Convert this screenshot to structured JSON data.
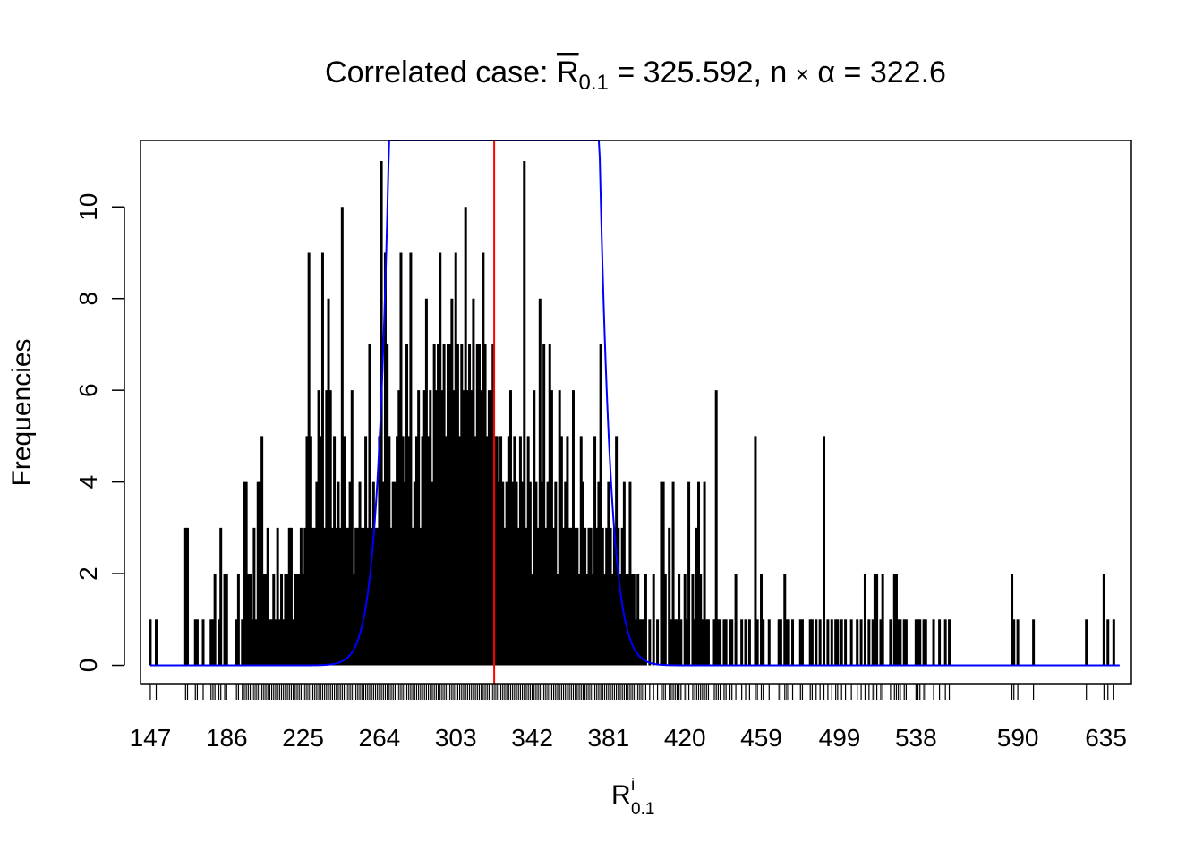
{
  "chart_data": {
    "type": "bar",
    "title": {
      "prefix": "Correlated case: ",
      "rbar": "R",
      "rbar_sub": "0.1",
      "rbar_eq": " = 325.592, n ",
      "times": "×",
      "alpha": " α",
      "alpha_eq": " = 322.6"
    },
    "xlabel": {
      "main": "R",
      "sub": "0.1",
      "sup": "i"
    },
    "ylabel": "Frequencies",
    "xlim": [
      142,
      648
    ],
    "ylim": [
      -0.4,
      11.45
    ],
    "x_ticks": [
      {
        "value": 147,
        "label": "147"
      },
      {
        "value": 186,
        "label": "186"
      },
      {
        "value": 225,
        "label": "225"
      },
      {
        "value": 264,
        "label": "264"
      },
      {
        "value": 303,
        "label": "303"
      },
      {
        "value": 342,
        "label": "342"
      },
      {
        "value": 381,
        "label": "381"
      },
      {
        "value": 420,
        "label": "420"
      },
      {
        "value": 459,
        "label": "459"
      },
      {
        "value": 499,
        "label": "499"
      },
      {
        "value": 538,
        "label": "538"
      },
      {
        "value": 590,
        "label": "590"
      },
      {
        "value": 635,
        "label": "635"
      }
    ],
    "y_ticks": [
      {
        "value": 0,
        "label": "0"
      },
      {
        "value": 2,
        "label": "2"
      },
      {
        "value": 4,
        "label": "4"
      },
      {
        "value": 6,
        "label": "6"
      },
      {
        "value": 8,
        "label": "8"
      },
      {
        "value": 10,
        "label": "10"
      }
    ],
    "mean_line": {
      "x": 322.6,
      "color": "#ff0000"
    },
    "density_curve": {
      "color": "#0000ff",
      "peak": 1000,
      "mu": 322.6,
      "sd": 17.96
    },
    "bar_color": "#000000",
    "values": [
      [
        147,
        1
      ],
      [
        150,
        1
      ],
      [
        165,
        3
      ],
      [
        166,
        3
      ],
      [
        170,
        1
      ],
      [
        171,
        1
      ],
      [
        174,
        1
      ],
      [
        178,
        1
      ],
      [
        179,
        1
      ],
      [
        180,
        2
      ],
      [
        182,
        1
      ],
      [
        183,
        3
      ],
      [
        185,
        2
      ],
      [
        186,
        2
      ],
      [
        191,
        1
      ],
      [
        192,
        2
      ],
      [
        194,
        1
      ],
      [
        195,
        4
      ],
      [
        196,
        4
      ],
      [
        197,
        2
      ],
      [
        198,
        2
      ],
      [
        199,
        1
      ],
      [
        200,
        3
      ],
      [
        201,
        1
      ],
      [
        202,
        4
      ],
      [
        203,
        4
      ],
      [
        204,
        5
      ],
      [
        205,
        2
      ],
      [
        206,
        2
      ],
      [
        207,
        3
      ],
      [
        208,
        1
      ],
      [
        209,
        1
      ],
      [
        210,
        2
      ],
      [
        211,
        1
      ],
      [
        212,
        3
      ],
      [
        213,
        1
      ],
      [
        214,
        2
      ],
      [
        215,
        1
      ],
      [
        216,
        2
      ],
      [
        217,
        2
      ],
      [
        218,
        3
      ],
      [
        219,
        3
      ],
      [
        220,
        1
      ],
      [
        221,
        2
      ],
      [
        222,
        2
      ],
      [
        223,
        2
      ],
      [
        224,
        3
      ],
      [
        225,
        2
      ],
      [
        226,
        3
      ],
      [
        227,
        5
      ],
      [
        228,
        9
      ],
      [
        229,
        5
      ],
      [
        230,
        3
      ],
      [
        231,
        3
      ],
      [
        232,
        4
      ],
      [
        233,
        6
      ],
      [
        234,
        5
      ],
      [
        235,
        9
      ],
      [
        236,
        3
      ],
      [
        237,
        6
      ],
      [
        238,
        8
      ],
      [
        239,
        6
      ],
      [
        240,
        3
      ],
      [
        241,
        5
      ],
      [
        242,
        3
      ],
      [
        243,
        4
      ],
      [
        244,
        3
      ],
      [
        245,
        10
      ],
      [
        246,
        5
      ],
      [
        247,
        3
      ],
      [
        248,
        3
      ],
      [
        249,
        4
      ],
      [
        250,
        6
      ],
      [
        251,
        2
      ],
      [
        252,
        3
      ],
      [
        253,
        3
      ],
      [
        254,
        4
      ],
      [
        255,
        3
      ],
      [
        256,
        3
      ],
      [
        257,
        5
      ],
      [
        258,
        3
      ],
      [
        259,
        7
      ],
      [
        260,
        3
      ],
      [
        261,
        4
      ],
      [
        262,
        3
      ],
      [
        263,
        3
      ],
      [
        264,
        5
      ],
      [
        265,
        11
      ],
      [
        266,
        4
      ],
      [
        267,
        9
      ],
      [
        268,
        7
      ],
      [
        269,
        5
      ],
      [
        270,
        3
      ],
      [
        271,
        4
      ],
      [
        272,
        4
      ],
      [
        273,
        5
      ],
      [
        274,
        6
      ],
      [
        275,
        9
      ],
      [
        276,
        5
      ],
      [
        277,
        4
      ],
      [
        278,
        7
      ],
      [
        279,
        5
      ],
      [
        280,
        9
      ],
      [
        281,
        3
      ],
      [
        282,
        4
      ],
      [
        283,
        5
      ],
      [
        284,
        6
      ],
      [
        285,
        3
      ],
      [
        286,
        5
      ],
      [
        287,
        6
      ],
      [
        288,
        8
      ],
      [
        289,
        5
      ],
      [
        290,
        6
      ],
      [
        291,
        4
      ],
      [
        292,
        7
      ],
      [
        293,
        6
      ],
      [
        294,
        7
      ],
      [
        295,
        9
      ],
      [
        296,
        6
      ],
      [
        297,
        7
      ],
      [
        298,
        5
      ],
      [
        299,
        7
      ],
      [
        300,
        7
      ],
      [
        301,
        8
      ],
      [
        302,
        6
      ],
      [
        303,
        9
      ],
      [
        304,
        7
      ],
      [
        305,
        5
      ],
      [
        306,
        7
      ],
      [
        307,
        6
      ],
      [
        308,
        10
      ],
      [
        309,
        6
      ],
      [
        310,
        7
      ],
      [
        311,
        6
      ],
      [
        312,
        8
      ],
      [
        313,
        5
      ],
      [
        314,
        7
      ],
      [
        315,
        7
      ],
      [
        316,
        6
      ],
      [
        317,
        9
      ],
      [
        318,
        7
      ],
      [
        319,
        5
      ],
      [
        320,
        6
      ],
      [
        321,
        6
      ],
      [
        322,
        7
      ],
      [
        323,
        5
      ],
      [
        324,
        5
      ],
      [
        325,
        4
      ],
      [
        326,
        5
      ],
      [
        327,
        4
      ],
      [
        328,
        3
      ],
      [
        329,
        4
      ],
      [
        330,
        5
      ],
      [
        331,
        6
      ],
      [
        332,
        4
      ],
      [
        333,
        5
      ],
      [
        334,
        4
      ],
      [
        335,
        3
      ],
      [
        336,
        5
      ],
      [
        337,
        4
      ],
      [
        338,
        11
      ],
      [
        339,
        3
      ],
      [
        340,
        5
      ],
      [
        341,
        4
      ],
      [
        342,
        2
      ],
      [
        343,
        6
      ],
      [
        344,
        4
      ],
      [
        345,
        3
      ],
      [
        346,
        8
      ],
      [
        347,
        4
      ],
      [
        348,
        7
      ],
      [
        349,
        3
      ],
      [
        350,
        4
      ],
      [
        351,
        7
      ],
      [
        352,
        6
      ],
      [
        353,
        3
      ],
      [
        354,
        4
      ],
      [
        355,
        2
      ],
      [
        356,
        6
      ],
      [
        357,
        5
      ],
      [
        358,
        3
      ],
      [
        359,
        4
      ],
      [
        360,
        5
      ],
      [
        361,
        3
      ],
      [
        362,
        3
      ],
      [
        363,
        6
      ],
      [
        364,
        3
      ],
      [
        365,
        3
      ],
      [
        366,
        2
      ],
      [
        367,
        5
      ],
      [
        368,
        4
      ],
      [
        369,
        3
      ],
      [
        370,
        2
      ],
      [
        371,
        3
      ],
      [
        372,
        3
      ],
      [
        373,
        2
      ],
      [
        374,
        5
      ],
      [
        375,
        3
      ],
      [
        376,
        4
      ],
      [
        377,
        7
      ],
      [
        378,
        3
      ],
      [
        379,
        2
      ],
      [
        380,
        3
      ],
      [
        381,
        4
      ],
      [
        382,
        3
      ],
      [
        383,
        2
      ],
      [
        384,
        3
      ],
      [
        385,
        5
      ],
      [
        386,
        3
      ],
      [
        387,
        2
      ],
      [
        388,
        3
      ],
      [
        389,
        4
      ],
      [
        390,
        2
      ],
      [
        391,
        2
      ],
      [
        392,
        4
      ],
      [
        393,
        2
      ],
      [
        394,
        2
      ],
      [
        395,
        1
      ],
      [
        396,
        2
      ],
      [
        397,
        1
      ],
      [
        398,
        1
      ],
      [
        399,
        1
      ],
      [
        400,
        2
      ],
      [
        402,
        1
      ],
      [
        404,
        2
      ],
      [
        406,
        1
      ],
      [
        408,
        4
      ],
      [
        409,
        4
      ],
      [
        410,
        2
      ],
      [
        412,
        3
      ],
      [
        413,
        1
      ],
      [
        414,
        4
      ],
      [
        415,
        1
      ],
      [
        416,
        1
      ],
      [
        417,
        2
      ],
      [
        418,
        1
      ],
      [
        420,
        2
      ],
      [
        421,
        1
      ],
      [
        422,
        4
      ],
      [
        424,
        2
      ],
      [
        425,
        1
      ],
      [
        426,
        3
      ],
      [
        427,
        4
      ],
      [
        428,
        2
      ],
      [
        429,
        1
      ],
      [
        430,
        4
      ],
      [
        431,
        1
      ],
      [
        432,
        1
      ],
      [
        435,
        1
      ],
      [
        436,
        6
      ],
      [
        437,
        1
      ],
      [
        438,
        1
      ],
      [
        440,
        1
      ],
      [
        441,
        1
      ],
      [
        443,
        1
      ],
      [
        444,
        1
      ],
      [
        446,
        2
      ],
      [
        449,
        1
      ],
      [
        451,
        1
      ],
      [
        453,
        1
      ],
      [
        456,
        5
      ],
      [
        457,
        1
      ],
      [
        459,
        2
      ],
      [
        460,
        1
      ],
      [
        463,
        1
      ],
      [
        468,
        1
      ],
      [
        469,
        1
      ],
      [
        471,
        2
      ],
      [
        472,
        1
      ],
      [
        473,
        1
      ],
      [
        475,
        1
      ],
      [
        479,
        1
      ],
      [
        480,
        1
      ],
      [
        484,
        1
      ],
      [
        485,
        1
      ],
      [
        487,
        1
      ],
      [
        489,
        1
      ],
      [
        491,
        5
      ],
      [
        493,
        1
      ],
      [
        495,
        1
      ],
      [
        497,
        1
      ],
      [
        498,
        1
      ],
      [
        500,
        1
      ],
      [
        502,
        1
      ],
      [
        505,
        1
      ],
      [
        508,
        1
      ],
      [
        510,
        1
      ],
      [
        512,
        2
      ],
      [
        514,
        1
      ],
      [
        516,
        1
      ],
      [
        517,
        2
      ],
      [
        518,
        2
      ],
      [
        520,
        1
      ],
      [
        521,
        2
      ],
      [
        525,
        1
      ],
      [
        527,
        2
      ],
      [
        528,
        2
      ],
      [
        529,
        1
      ],
      [
        530,
        1
      ],
      [
        532,
        1
      ],
      [
        533,
        1
      ],
      [
        538,
        1
      ],
      [
        539,
        1
      ],
      [
        540,
        1
      ],
      [
        542,
        1
      ],
      [
        543,
        1
      ],
      [
        547,
        1
      ],
      [
        550,
        1
      ],
      [
        553,
        1
      ],
      [
        555,
        1
      ],
      [
        587,
        2
      ],
      [
        588,
        1
      ],
      [
        590,
        1
      ],
      [
        598,
        1
      ],
      [
        625,
        1
      ],
      [
        634,
        2
      ],
      [
        636,
        1
      ],
      [
        639,
        1
      ]
    ]
  }
}
